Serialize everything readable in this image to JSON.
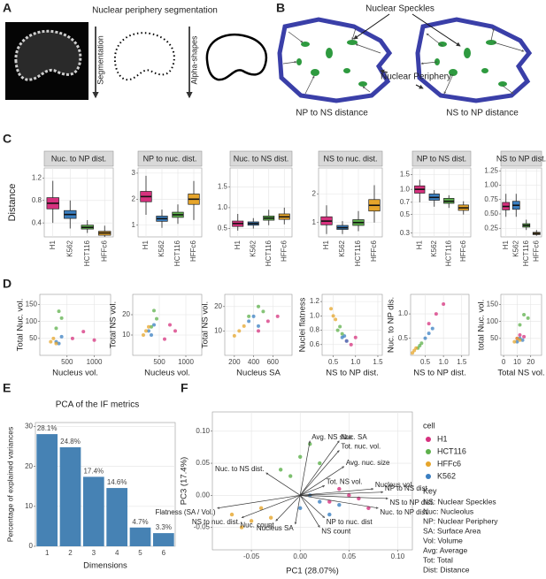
{
  "panel_labels": [
    "A",
    "B",
    "C",
    "D",
    "E",
    "F"
  ],
  "panel_a": {
    "title": "Nuclear periphery segmentation",
    "step1": "Segmentation",
    "step2": "Alpha-shapes"
  },
  "panel_b": {
    "speckles": "Nuclear Speckles",
    "periphery": "Nuclear Periphery",
    "left": "NP to NS distance",
    "right": "NS to NP distance"
  },
  "panel_c": {
    "y_label": "Distance"
  },
  "chart_data": [
    {
      "type": "box",
      "title": "Nuc. to NP dist.",
      "categories": [
        "H1",
        "K562",
        "HCT116",
        "HFFc6"
      ],
      "colors": [
        "#d6317e",
        "#3a7fc1",
        "#5db04b",
        "#e6a52b"
      ],
      "boxes": [
        {
          "low": 0.4,
          "q1": 0.65,
          "median": 0.75,
          "q3": 0.85,
          "high": 1.15
        },
        {
          "low": 0.3,
          "q1": 0.48,
          "median": 0.55,
          "q3": 0.62,
          "high": 0.8
        },
        {
          "low": 0.22,
          "q1": 0.29,
          "median": 0.32,
          "q3": 0.36,
          "high": 0.45
        },
        {
          "low": 0.15,
          "q1": 0.18,
          "median": 0.22,
          "q3": 0.25,
          "high": 0.35
        }
      ],
      "ylim": [
        0.15,
        1.38
      ],
      "yticks": [
        0.4,
        0.8,
        1.2
      ]
    },
    {
      "type": "box",
      "title": "NP to nuc. dist.",
      "categories": [
        "H1",
        "K562",
        "HCT116",
        "HFFc6"
      ],
      "colors": [
        "#d6317e",
        "#3a7fc1",
        "#5db04b",
        "#e6a52b"
      ],
      "boxes": [
        {
          "low": 1.4,
          "q1": 1.9,
          "median": 2.1,
          "q3": 2.3,
          "high": 2.9
        },
        {
          "low": 0.9,
          "q1": 1.15,
          "median": 1.25,
          "q3": 1.35,
          "high": 1.6
        },
        {
          "low": 1.05,
          "q1": 1.3,
          "median": 1.4,
          "q3": 1.5,
          "high": 1.8
        },
        {
          "low": 1.2,
          "q1": 1.8,
          "median": 2.0,
          "q3": 2.2,
          "high": 2.7
        }
      ],
      "ylim": [
        0.55,
        3.2
      ],
      "yticks": [
        1,
        2,
        3
      ]
    },
    {
      "type": "box",
      "title": "Nuc. to NS dist.",
      "categories": [
        "H1",
        "K562",
        "HCT116",
        "HFFc6"
      ],
      "colors": [
        "#d6317e",
        "#3a7fc1",
        "#5db04b",
        "#e6a52b"
      ],
      "boxes": [
        {
          "low": 0.45,
          "q1": 0.55,
          "median": 0.62,
          "q3": 0.68,
          "high": 0.85
        },
        {
          "low": 0.5,
          "q1": 0.58,
          "median": 0.62,
          "q3": 0.66,
          "high": 0.75
        },
        {
          "low": 0.58,
          "q1": 0.7,
          "median": 0.75,
          "q3": 0.8,
          "high": 0.95
        },
        {
          "low": 0.6,
          "q1": 0.72,
          "median": 0.78,
          "q3": 0.85,
          "high": 1.0
        }
      ],
      "ylim": [
        0.3,
        1.95
      ],
      "yticks": [
        0.5,
        {
          "value": 1,
          "label": "1.0"
        },
        1.5
      ]
    },
    {
      "type": "box",
      "title": "NS to nuc. dist.",
      "categories": [
        "H1",
        "K562",
        "HCT116",
        "HFFc6"
      ],
      "colors": [
        "#d6317e",
        "#3a7fc1",
        "#5db04b",
        "#e6a52b"
      ],
      "boxes": [
        {
          "low": 0.6,
          "q1": 0.92,
          "median": 1.05,
          "q3": 1.2,
          "high": 1.6
        },
        {
          "low": 0.6,
          "q1": 0.76,
          "median": 0.82,
          "q3": 0.9,
          "high": 1.05
        },
        {
          "low": 0.7,
          "q1": 0.9,
          "median": 1.0,
          "q3": 1.1,
          "high": 1.4
        },
        {
          "low": 1.0,
          "q1": 1.4,
          "median": 1.6,
          "q3": 1.8,
          "high": 2.3
        }
      ],
      "ylim": [
        0.5,
        2.9
      ],
      "yticks": [
        1,
        2
      ]
    },
    {
      "type": "box",
      "title": "NP to NS dist.",
      "categories": [
        "H1",
        "K562",
        "HCT116",
        "HFFc6"
      ],
      "colors": [
        "#d6317e",
        "#3a7fc1",
        "#5db04b",
        "#e6a52b"
      ],
      "log": true,
      "boxes": [
        {
          "low": 0.7,
          "q1": 0.9,
          "median": 1.0,
          "q3": 1.1,
          "high": 1.3
        },
        {
          "low": 0.62,
          "q1": 0.74,
          "median": 0.8,
          "q3": 0.88,
          "high": 0.98
        },
        {
          "low": 0.6,
          "q1": 0.68,
          "median": 0.72,
          "q3": 0.78,
          "high": 0.85
        },
        {
          "low": 0.5,
          "q1": 0.56,
          "median": 0.6,
          "q3": 0.65,
          "high": 0.72
        }
      ],
      "ylim": [
        0.27,
        1.8
      ],
      "yticks": [
        0.3,
        0.5,
        0.7,
        {
          "value": 1,
          "label": "1.0"
        },
        1.5
      ]
    },
    {
      "type": "box",
      "title": "NS to NP dist.",
      "categories": [
        "H1",
        "K562",
        "HCT116",
        "HFFc6"
      ],
      "colors": [
        "#d6317e",
        "#3a7fc1",
        "#5db04b",
        "#e6a52b"
      ],
      "boxes": [
        {
          "low": 0.45,
          "q1": 0.57,
          "median": 0.63,
          "q3": 0.7,
          "high": 0.85
        },
        {
          "low": 0.45,
          "q1": 0.58,
          "median": 0.65,
          "q3": 0.72,
          "high": 0.85
        },
        {
          "low": 0.22,
          "q1": 0.27,
          "median": 0.3,
          "q3": 0.33,
          "high": 0.4
        },
        {
          "low": 0.12,
          "q1": 0.14,
          "median": 0.16,
          "q3": 0.18,
          "high": 0.22
        }
      ],
      "ylim": [
        0.1,
        1.3
      ],
      "yticks": [
        0.25,
        {
          "value": 0.5,
          "label": "0.50"
        },
        0.75,
        {
          "value": 1,
          "label": "1.00"
        },
        1.25
      ]
    },
    {
      "type": "scatter",
      "x_label": "Nucleus vol.",
      "y_label": "Total Nuc. vol.",
      "xlim": [
        0,
        1300
      ],
      "ylim": [
        0,
        180
      ],
      "xticks": [
        500,
        1000
      ],
      "yticks": [
        50,
        100,
        150
      ],
      "series": [
        {
          "color": "#d6317e",
          "x": [
            600,
            800,
            1000
          ],
          "y": [
            50,
            70,
            45
          ]
        },
        {
          "color": "#3a7fc1",
          "x": [
            300,
            400,
            350
          ],
          "y": [
            40,
            55,
            35
          ]
        },
        {
          "color": "#5db04b",
          "x": [
            300,
            400,
            350
          ],
          "y": [
            80,
            110,
            130
          ]
        },
        {
          "color": "#e6a52b",
          "x": [
            200,
            250,
            300
          ],
          "y": [
            40,
            50,
            35
          ]
        }
      ]
    },
    {
      "type": "scatter",
      "x_label": "Nucleus vol.",
      "y_label": "Total NS vol.",
      "xlim": [
        0,
        1300
      ],
      "ylim": [
        0,
        30
      ],
      "xticks": [
        500,
        1000
      ],
      "yticks": [
        10,
        20
      ],
      "series": [
        {
          "color": "#d6317e",
          "x": [
            600,
            800,
            700
          ],
          "y": [
            8,
            12,
            15
          ]
        },
        {
          "color": "#3a7fc1",
          "x": [
            300,
            400,
            350
          ],
          "y": [
            12,
            15,
            10
          ]
        },
        {
          "color": "#5db04b",
          "x": [
            350,
            450,
            400
          ],
          "y": [
            14,
            18,
            22
          ]
        },
        {
          "color": "#e6a52b",
          "x": [
            200,
            300,
            250
          ],
          "y": [
            10,
            14,
            12
          ]
        }
      ]
    },
    {
      "type": "scatter",
      "x_label": "Nucleus SA",
      "y_label": "Total NS vol.",
      "xlim": [
        100,
        800
      ],
      "ylim": [
        0,
        25
      ],
      "xticks": [
        200,
        400,
        600
      ],
      "yticks": [
        10,
        20
      ],
      "series": [
        {
          "color": "#d6317e",
          "x": [
            450,
            550,
            650
          ],
          "y": [
            10,
            14,
            16
          ]
        },
        {
          "color": "#3a7fc1",
          "x": [
            350,
            400,
            450
          ],
          "y": [
            14,
            16,
            12
          ]
        },
        {
          "color": "#5db04b",
          "x": [
            350,
            450,
            500
          ],
          "y": [
            16,
            20,
            18
          ]
        },
        {
          "color": "#e6a52b",
          "x": [
            200,
            250,
            300
          ],
          "y": [
            8,
            10,
            12
          ]
        }
      ]
    },
    {
      "type": "scatter",
      "x_label": "NS to NP dist.",
      "y_label": "Nuclei flatness",
      "xlim": [
        0.25,
        1.6
      ],
      "ylim": [
        0.45,
        1.3
      ],
      "xticks": [
        0.5,
        {
          "value": 1,
          "label": "1.0"
        },
        1.5
      ],
      "yticks": [
        0.6,
        0.8,
        {
          "value": 1,
          "label": "1.0"
        },
        1.2
      ],
      "series": [
        {
          "color": "#d6317e",
          "x": [
            0.8,
            0.9,
            1.0
          ],
          "y": [
            0.65,
            0.6,
            0.7
          ]
        },
        {
          "color": "#3a7fc1",
          "x": [
            0.7,
            0.8,
            0.75
          ],
          "y": [
            0.7,
            0.65,
            0.72
          ]
        },
        {
          "color": "#5db04b",
          "x": [
            0.6,
            0.7,
            0.65
          ],
          "y": [
            0.8,
            0.75,
            0.85
          ]
        },
        {
          "color": "#e6a52b",
          "x": [
            0.45,
            0.5,
            0.55
          ],
          "y": [
            1.1,
            1.0,
            0.95
          ]
        }
      ]
    },
    {
      "type": "scatter",
      "x_label": "NS to NP dist.",
      "y_label": "Nuc. to NP dis.",
      "xlim": [
        0.1,
        1.7
      ],
      "ylim": [
        0.15,
        1.4
      ],
      "xticks": [
        0.5,
        {
          "value": 1,
          "label": "1.0"
        },
        1.5
      ],
      "yticks": [
        0.5,
        {
          "value": 1,
          "label": "1.0"
        }
      ],
      "series": [
        {
          "color": "#d6317e",
          "x": [
            0.6,
            0.8,
            1.0
          ],
          "y": [
            0.8,
            1.0,
            1.2
          ]
        },
        {
          "color": "#3a7fc1",
          "x": [
            0.5,
            0.6,
            0.7
          ],
          "y": [
            0.5,
            0.6,
            0.7
          ]
        },
        {
          "color": "#5db04b",
          "x": [
            0.3,
            0.35,
            0.4
          ],
          "y": [
            0.3,
            0.35,
            0.4
          ]
        },
        {
          "color": "#e6a52b",
          "x": [
            0.15,
            0.2,
            0.25
          ],
          "y": [
            0.2,
            0.25,
            0.3
          ]
        }
      ]
    },
    {
      "type": "scatter",
      "x_label": "Total NS vol.",
      "y_label": "total Nuc. vol.",
      "xlim": [
        -2,
        28
      ],
      "ylim": [
        0,
        180
      ],
      "xticks": [
        0,
        10,
        20
      ],
      "yticks": [
        50,
        100,
        150
      ],
      "series": [
        {
          "color": "#d6317e",
          "x": [
            10,
            12,
            15
          ],
          "y": [
            50,
            60,
            55
          ]
        },
        {
          "color": "#3a7fc1",
          "x": [
            10,
            12,
            14
          ],
          "y": [
            40,
            50,
            45
          ]
        },
        {
          "color": "#5db04b",
          "x": [
            12,
            15,
            18
          ],
          "y": [
            90,
            120,
            110
          ]
        },
        {
          "color": "#e6a52b",
          "x": [
            8,
            10,
            12
          ],
          "y": [
            40,
            50,
            45
          ]
        }
      ]
    },
    {
      "type": "bar",
      "title": "PCA of the IF metrics",
      "x_label": "Dimensions",
      "y_label": "Percentage of explained variances",
      "categories": [
        "1",
        "2",
        "3",
        "4",
        "5",
        "6"
      ],
      "values": [
        28.1,
        24.8,
        17.4,
        14.6,
        4.7,
        3.3
      ],
      "value_labels": [
        "28.1%",
        "24.8%",
        "17.4%",
        "14.6%",
        "4.7%",
        "3.3%"
      ],
      "color": "#4682b4",
      "ylim": [
        0,
        31
      ],
      "yticks": [
        0,
        10,
        20,
        30
      ],
      "grid": true
    },
    {
      "type": "biplot",
      "x_label": "PC1 (28.07%)",
      "y_label": "PC3 (17.4%)",
      "legend_title": "cell",
      "xlim": [
        -0.09,
        0.115
      ],
      "ylim": [
        -0.085,
        0.13
      ],
      "xticks": [
        -0.05,
        {
          "value": 0,
          "label": "0.00"
        },
        0.05,
        {
          "value": 0.1,
          "label": "0.10"
        }
      ],
      "yticks": [
        -0.05,
        {
          "value": 0,
          "label": "0.00"
        },
        0.05,
        {
          "value": 0.1,
          "label": "0.10"
        }
      ],
      "series": [
        {
          "name": "H1",
          "color": "#d6317e",
          "x": [
            0.03,
            0.05,
            0.07,
            0.04,
            0.06
          ],
          "y": [
            -0.01,
            0.0,
            -0.02,
            0.01,
            -0.005
          ]
        },
        {
          "name": "HCT116",
          "color": "#5db04b",
          "x": [
            -0.02,
            0.0,
            0.02,
            -0.01,
            0.01
          ],
          "y": [
            0.04,
            0.06,
            0.05,
            0.03,
            0.08
          ]
        },
        {
          "name": "HFFc6",
          "color": "#e6a52b",
          "x": [
            -0.07,
            -0.05,
            -0.04,
            -0.06,
            -0.03
          ],
          "y": [
            -0.03,
            -0.04,
            -0.02,
            -0.05,
            -0.035
          ]
        },
        {
          "name": "K562",
          "color": "#3a7fc1",
          "x": [
            0.0,
            0.02,
            0.03,
            0.01,
            0.04
          ],
          "y": [
            -0.02,
            -0.01,
            -0.03,
            0.0,
            -0.015
          ]
        }
      ],
      "loadings": [
        {
          "label": "Avg. NS size",
          "x": 0.01,
          "y": 0.085
        },
        {
          "label": "Nuc. SA",
          "x": 0.04,
          "y": 0.085
        },
        {
          "label": "Tot. nuc. vol.",
          "x": 0.04,
          "y": 0.07
        },
        {
          "label": "Avg. nuc. size",
          "x": 0.045,
          "y": 0.045
        },
        {
          "label": "Nuc. to NS dist.",
          "x": -0.035,
          "y": 0.035
        },
        {
          "label": "Tot. NS vol.",
          "x": 0.025,
          "y": 0.015
        },
        {
          "label": "Nucleus vol.",
          "x": 0.075,
          "y": 0.01
        },
        {
          "label": "NP to NS dist.",
          "x": 0.085,
          "y": 0.005
        },
        {
          "label": "NS to NP dist.",
          "x": 0.09,
          "y": -0.005
        },
        {
          "label": "Nuc. to NP dist.",
          "x": 0.08,
          "y": -0.02
        },
        {
          "label": "Flatness (SA / Vol.)",
          "x": -0.085,
          "y": -0.02
        },
        {
          "label": "Nuc. count",
          "x": -0.025,
          "y": -0.04
        },
        {
          "label": "NS to nuc. dist.",
          "x": -0.06,
          "y": -0.035
        },
        {
          "label": "Nucleus SA",
          "x": -0.005,
          "y": -0.045
        },
        {
          "label": "NS count",
          "x": 0.02,
          "y": -0.05
        },
        {
          "label": "NP to nuc. dist",
          "x": 0.025,
          "y": -0.035
        }
      ]
    }
  ],
  "panel_f_key": {
    "title": "Key",
    "lines": [
      "NS: Nuclear Speckles",
      "Nuc: Nucleolus",
      "NP: Nuclear Periphery",
      "SA: Surface Area",
      "Vol: Volume",
      "Avg: Average",
      "Tot: Total",
      "Dist: Distance"
    ]
  }
}
